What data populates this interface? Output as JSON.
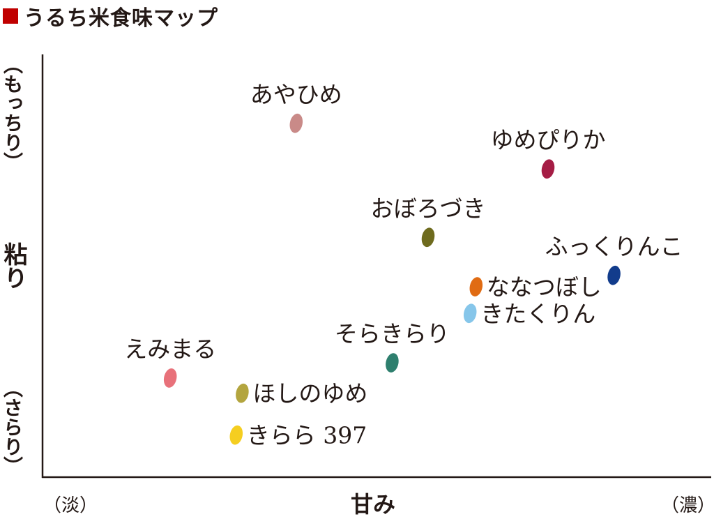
{
  "title": {
    "text": "うるち米食味マップ",
    "square_color": "#c00000"
  },
  "chart_data": {
    "type": "scatter",
    "title": "うるち米食味マップ",
    "xlabel": "甘み",
    "ylabel": "粘り",
    "x_axis_low_label": "（淡）",
    "x_axis_high_label": "（濃）",
    "y_axis_high_label": "（もっちり）",
    "y_axis_low_label": "（さらり）",
    "xlim": [
      0,
      10
    ],
    "ylim": [
      0,
      10
    ],
    "grid": false,
    "axis_color": "#231815",
    "points": [
      {
        "label": "あやひめ",
        "x": 3.8,
        "y": 8.5,
        "color": "#c98a88",
        "label_pos": "above"
      },
      {
        "label": "ゆめぴりか",
        "x": 8.0,
        "y": 7.3,
        "color": "#a51d45",
        "label_pos": "above"
      },
      {
        "label": "おぼろづき",
        "x": 6.0,
        "y": 5.5,
        "color": "#6e6b1e",
        "label_pos": "above"
      },
      {
        "label": "ふっくりんこ",
        "x": 9.1,
        "y": 4.5,
        "color": "#123c8c",
        "label_pos": "above"
      },
      {
        "label": "ななつぼし",
        "x": 6.8,
        "y": 4.2,
        "color": "#e06b13",
        "label_pos": "right"
      },
      {
        "label": "きたくりん",
        "x": 6.7,
        "y": 3.5,
        "color": "#86c6ea",
        "label_pos": "right"
      },
      {
        "label": "そらきらり",
        "x": 5.4,
        "y": 2.2,
        "color": "#2e7f6e",
        "label_pos": "above"
      },
      {
        "label": "えみまる",
        "x": 1.7,
        "y": 1.8,
        "color": "#e8717a",
        "label_pos": "above"
      },
      {
        "label": "ほしのゆめ",
        "x": 2.9,
        "y": 1.4,
        "color": "#b3a53f",
        "label_pos": "right"
      },
      {
        "label": "きらら 397",
        "x": 2.8,
        "y": 0.3,
        "color": "#f5ce20",
        "label_pos": "right"
      }
    ]
  }
}
